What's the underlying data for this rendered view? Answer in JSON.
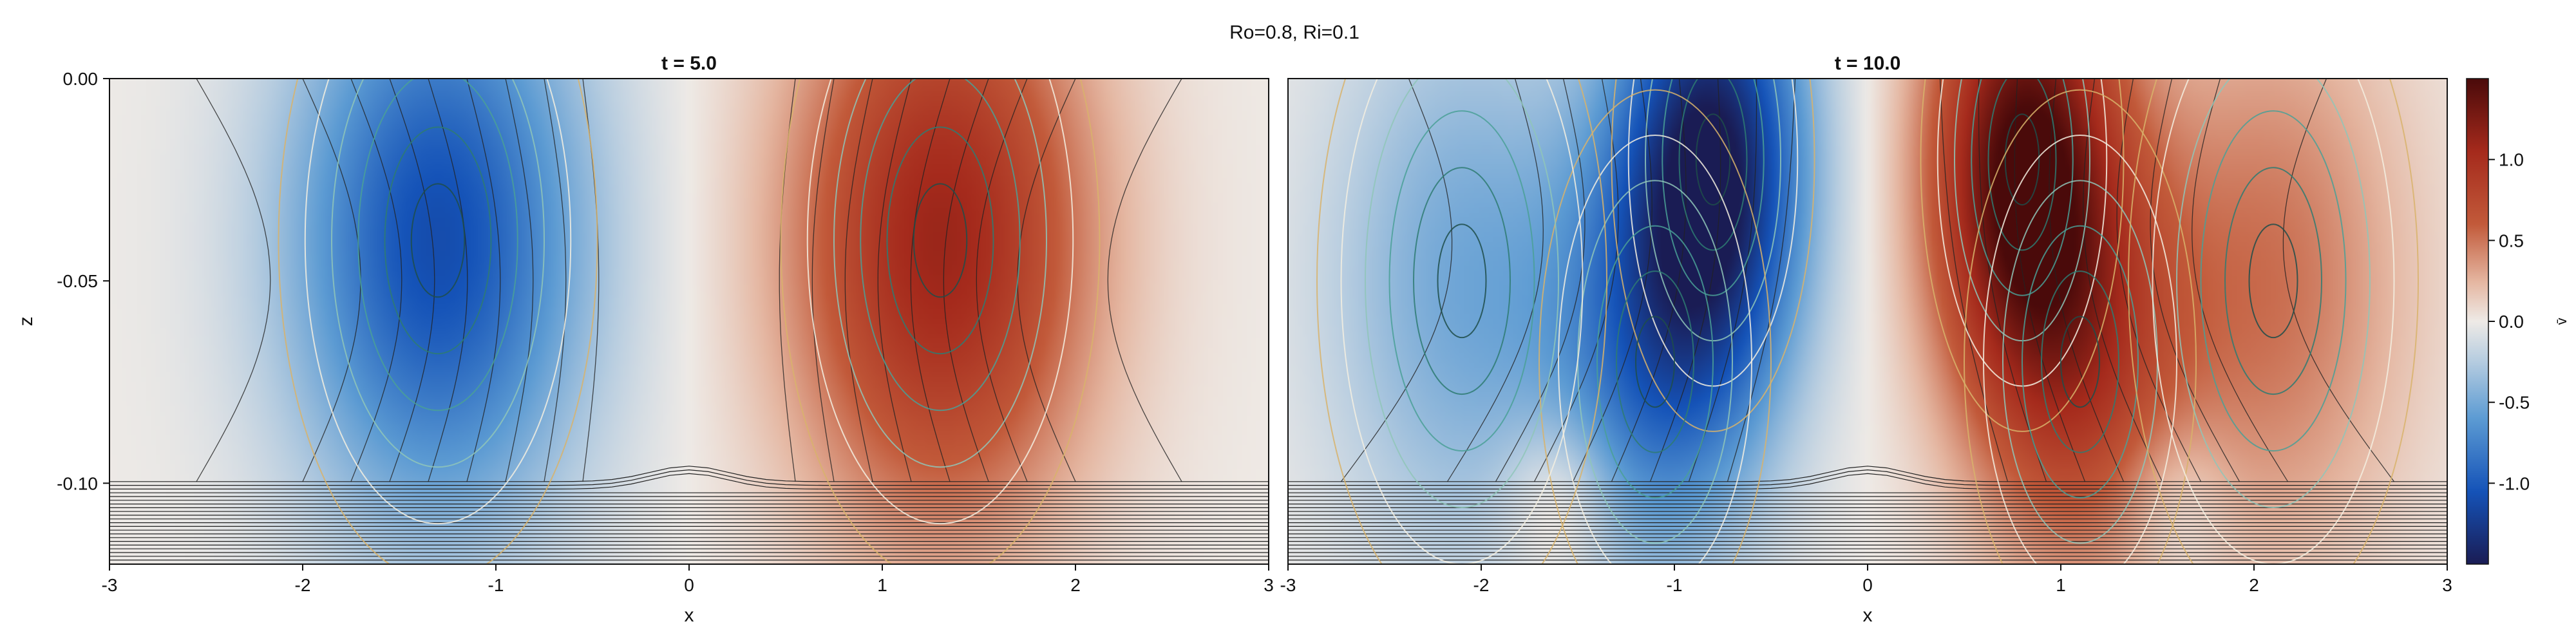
{
  "suptitle": "Ro=0.8, Ri=0.1",
  "colorbar": {
    "label": "v̄",
    "ticks": [
      1.0,
      0.5,
      0.0,
      -0.5,
      -1.0
    ],
    "tick_labels": [
      "1.0",
      "0.5",
      "0.0",
      "-0.5",
      "-1.0"
    ],
    "range": [
      -1.5,
      1.5
    ],
    "colormap": [
      "#1a1c54",
      "#1553b8",
      "#5c9bd3",
      "#b7cde0",
      "#eeeae6",
      "#e5b7a2",
      "#c25a3a",
      "#a52a1c",
      "#4a0a0a"
    ]
  },
  "chart_data": [
    {
      "type": "heatmap",
      "title": "t = 5.0",
      "xlabel": "x",
      "ylabel": "z",
      "xlim": [
        -3,
        3
      ],
      "ylim": [
        -0.12,
        0
      ],
      "xticks": [
        -3,
        -2,
        -1,
        0,
        1,
        2,
        3
      ],
      "xtick_labels": [
        "-3",
        "-2",
        "-1",
        "0",
        "1",
        "2",
        "3"
      ],
      "yticks": [
        0,
        -0.05,
        -0.1
      ],
      "ytick_labels": [
        "0.00",
        "-0.05",
        "-0.10"
      ],
      "field": {
        "vortices": [
          {
            "x": -1.3,
            "z": -0.04,
            "amp": -1.1,
            "sx": 0.55,
            "sz": 0.05
          },
          {
            "x": 1.3,
            "z": -0.04,
            "amp": 1.1,
            "sx": 0.55,
            "sz": 0.05
          }
        ]
      }
    },
    {
      "type": "heatmap",
      "title": "t = 10.0",
      "xlabel": "x",
      "ylabel": "",
      "xlim": [
        -3,
        3
      ],
      "ylim": [
        -0.12,
        0
      ],
      "xticks": [
        -3,
        -2,
        -1,
        0,
        1,
        2
      ],
      "xtick_labels": [
        "-3",
        "-2",
        "-1",
        "0",
        "1",
        "2"
      ],
      "xtick_extra": {
        "value": 3,
        "label": "3"
      },
      "field": {
        "vortices": [
          {
            "x": -0.8,
            "z": -0.02,
            "amp": -1.4,
            "sx": 0.35,
            "sz": 0.04
          },
          {
            "x": -1.1,
            "z": -0.07,
            "amp": -0.7,
            "sx": 0.4,
            "sz": 0.04
          },
          {
            "x": -2.1,
            "z": -0.05,
            "amp": -0.5,
            "sx": 0.5,
            "sz": 0.05
          },
          {
            "x": 0.8,
            "z": -0.02,
            "amp": 1.4,
            "sx": 0.35,
            "sz": 0.04
          },
          {
            "x": 1.1,
            "z": -0.07,
            "amp": 0.7,
            "sx": 0.4,
            "sz": 0.04
          },
          {
            "x": 2.1,
            "z": -0.05,
            "amp": 0.5,
            "sx": 0.5,
            "sz": 0.05
          },
          {
            "x": -1.6,
            "z": -0.105,
            "amp": 0.35,
            "sx": 0.2,
            "sz": 0.015
          },
          {
            "x": 1.6,
            "z": -0.105,
            "amp": -0.25,
            "sx": 0.2,
            "sz": 0.015
          }
        ]
      }
    }
  ]
}
